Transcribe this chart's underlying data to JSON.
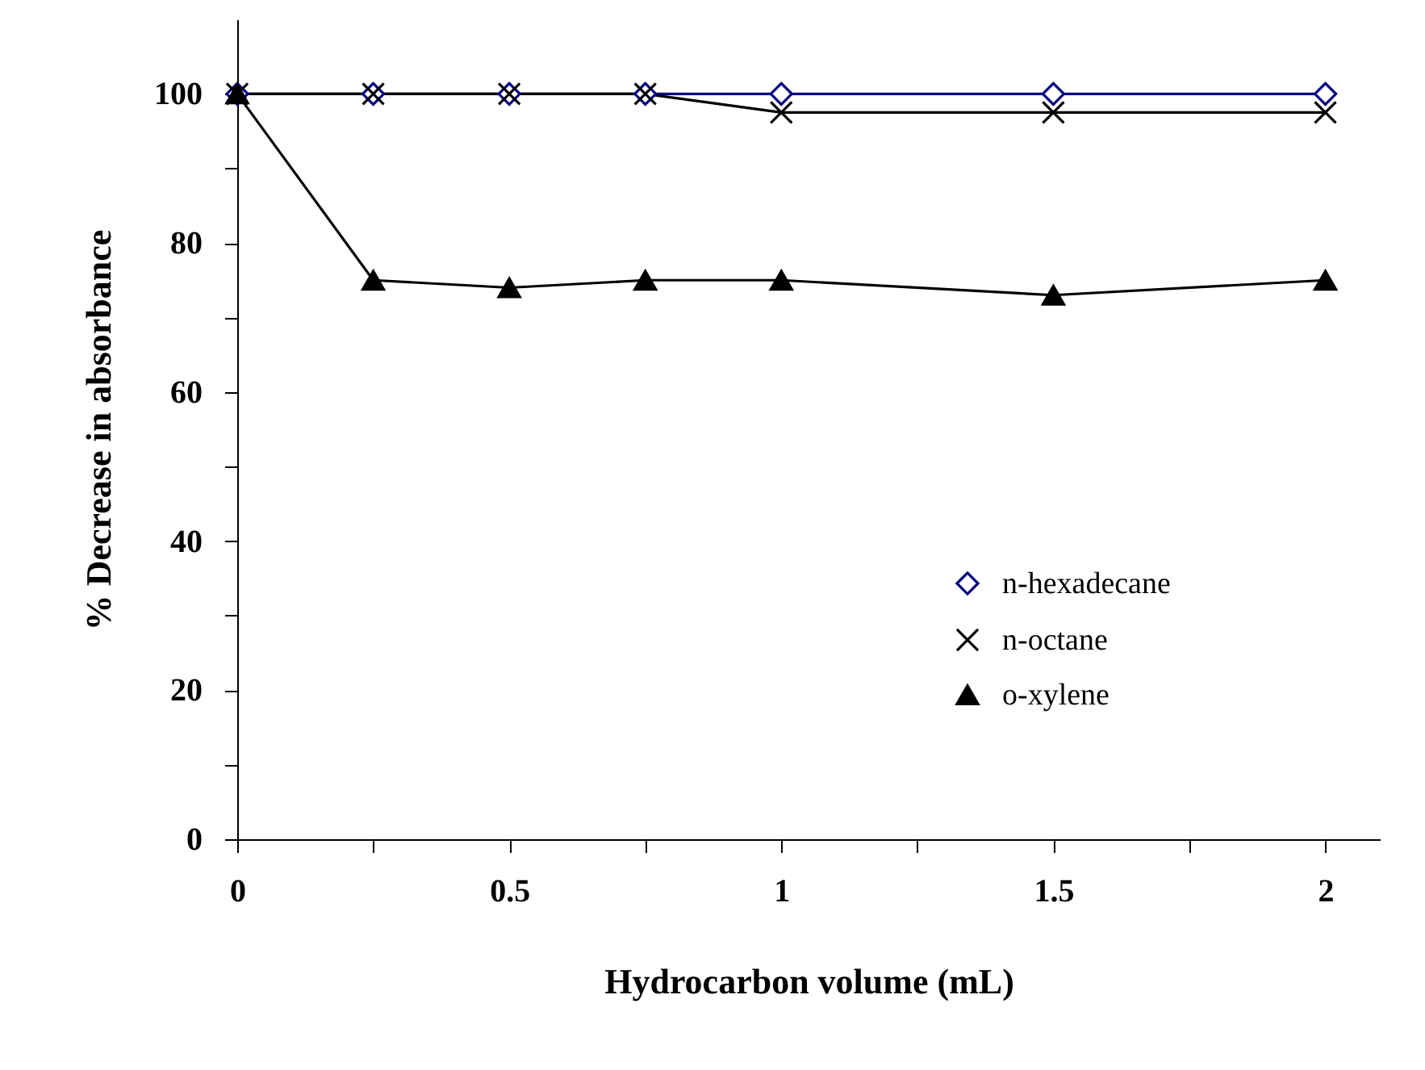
{
  "chart_data": {
    "type": "line",
    "xlabel": "Hydrocarbon volume (mL)",
    "ylabel": "% Decrease in absorbance",
    "x": [
      0,
      0.25,
      0.5,
      0.75,
      1,
      1.5,
      2
    ],
    "series": [
      {
        "name": "n-hexadecane",
        "color": "#000080",
        "marker": "diamond",
        "values": [
          100,
          100,
          100,
          100,
          100,
          100,
          100
        ]
      },
      {
        "name": "n-octane",
        "color": "#000000",
        "marker": "cross",
        "values": [
          100,
          100,
          100,
          100,
          97.5,
          97.5,
          97.5
        ]
      },
      {
        "name": "o-xylene",
        "color": "#000000",
        "marker": "triangle",
        "values": [
          100,
          75,
          74,
          75,
          75,
          73,
          75
        ]
      }
    ],
    "xlim": [
      0,
      2.1
    ],
    "xticks": [
      0,
      {
        "value": 0.25,
        "label": null
      },
      "0.5",
      {
        "value": 0.75,
        "label": null
      },
      1,
      {
        "value": 1.25,
        "label": null
      },
      1.5,
      {
        "value": 1.75,
        "label": null
      },
      2
    ],
    "ylim": [
      0,
      110
    ],
    "yticks": [
      0,
      {
        "value": 10,
        "label": null
      },
      20,
      {
        "value": 30,
        "label": null
      },
      40,
      {
        "value": 50,
        "label": null
      },
      60,
      {
        "value": 70,
        "label": null
      },
      80,
      {
        "value": 90,
        "label": null
      },
      100
    ],
    "grid": false,
    "legend": "right"
  }
}
